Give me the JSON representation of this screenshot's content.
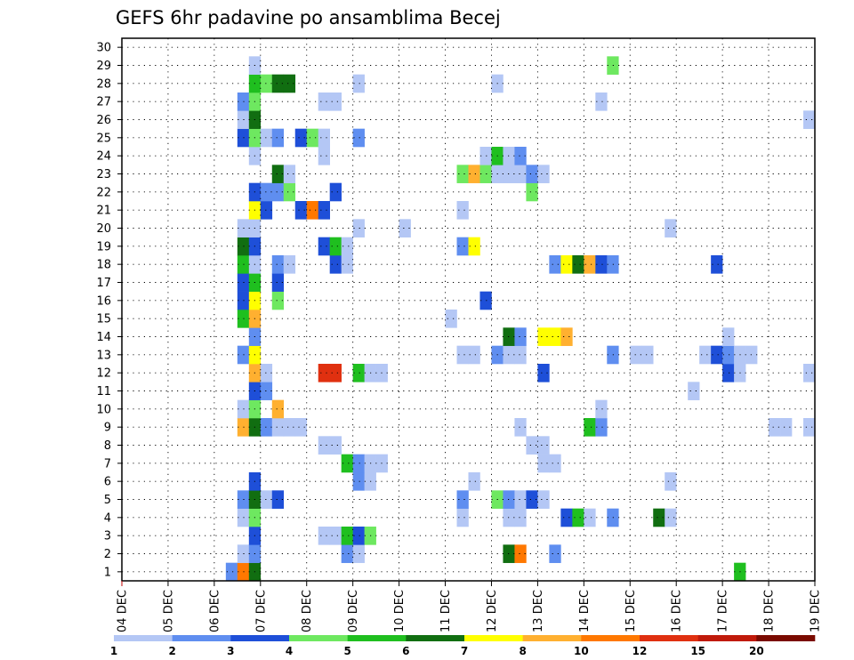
{
  "chart_data": {
    "type": "heatmap",
    "title": "GEFS 6hr padavine po ansamblima Becej",
    "xlabel": "",
    "ylabel": "",
    "x_tick_labels": [
      "04 DEC",
      "05 DEC",
      "06 DEC",
      "07 DEC",
      "08 DEC",
      "09 DEC",
      "10 DEC",
      "11 DEC",
      "12 DEC",
      "13 DEC",
      "14 DEC",
      "15 DEC",
      "16 DEC",
      "17 DEC",
      "18 DEC",
      "19 DEC"
    ],
    "y_tick_labels": [
      "1",
      "2",
      "3",
      "4",
      "5",
      "6",
      "7",
      "8",
      "9",
      "10",
      "11",
      "12",
      "13",
      "14",
      "15",
      "16",
      "17",
      "18",
      "19",
      "20",
      "21",
      "22",
      "23",
      "24",
      "25",
      "26",
      "27",
      "28",
      "29",
      "30"
    ],
    "xlim_steps": [
      0,
      60
    ],
    "ylim_members": [
      0.5,
      30.5
    ],
    "time_step_hours": 6,
    "grid": true,
    "colorbar": {
      "placement": "bottom",
      "levels": [
        "1",
        "2",
        "3",
        "4",
        "5",
        "6",
        "7",
        "8",
        "10",
        "12",
        "15",
        "20"
      ],
      "colors": [
        "#b4c7f5",
        "#5f8ef0",
        "#1e4fd8",
        "#6ee860",
        "#1fbf1f",
        "#116e11",
        "#ffff00",
        "#ffb030",
        "#ff7800",
        "#e03010",
        "#c01a0a",
        "#7a0a00"
      ]
    },
    "cells": [
      {
        "m": 1,
        "t": 9,
        "c": 1
      },
      {
        "m": 1,
        "t": 10,
        "c": 8
      },
      {
        "m": 1,
        "t": 11,
        "c": 5
      },
      {
        "m": 1,
        "t": 53,
        "c": 4
      },
      {
        "m": 2,
        "t": 10,
        "c": 0
      },
      {
        "m": 2,
        "t": 11,
        "c": 1
      },
      {
        "m": 2,
        "t": 19,
        "c": 1
      },
      {
        "m": 2,
        "t": 20,
        "c": 0
      },
      {
        "m": 2,
        "t": 33,
        "c": 5
      },
      {
        "m": 2,
        "t": 34,
        "c": 8
      },
      {
        "m": 2,
        "t": 37,
        "c": 1
      },
      {
        "m": 3,
        "t": 11,
        "c": 2
      },
      {
        "m": 3,
        "t": 17,
        "c": 0
      },
      {
        "m": 3,
        "t": 18,
        "c": 0
      },
      {
        "m": 3,
        "t": 19,
        "c": 4
      },
      {
        "m": 3,
        "t": 20,
        "c": 2
      },
      {
        "m": 3,
        "t": 21,
        "c": 3
      },
      {
        "m": 4,
        "t": 10,
        "c": 0
      },
      {
        "m": 4,
        "t": 11,
        "c": 3
      },
      {
        "m": 4,
        "t": 29,
        "c": 0
      },
      {
        "m": 4,
        "t": 33,
        "c": 0
      },
      {
        "m": 4,
        "t": 34,
        "c": 0
      },
      {
        "m": 4,
        "t": 38,
        "c": 2
      },
      {
        "m": 4,
        "t": 39,
        "c": 4
      },
      {
        "m": 4,
        "t": 40,
        "c": 0
      },
      {
        "m": 4,
        "t": 42,
        "c": 1
      },
      {
        "m": 4,
        "t": 46,
        "c": 5
      },
      {
        "m": 4,
        "t": 47,
        "c": 0
      },
      {
        "m": 5,
        "t": 10,
        "c": 1
      },
      {
        "m": 5,
        "t": 11,
        "c": 5
      },
      {
        "m": 5,
        "t": 12,
        "c": 0
      },
      {
        "m": 5,
        "t": 13,
        "c": 2
      },
      {
        "m": 5,
        "t": 29,
        "c": 1
      },
      {
        "m": 5,
        "t": 32,
        "c": 3
      },
      {
        "m": 5,
        "t": 33,
        "c": 1
      },
      {
        "m": 5,
        "t": 34,
        "c": 0
      },
      {
        "m": 5,
        "t": 35,
        "c": 2
      },
      {
        "m": 5,
        "t": 36,
        "c": 0
      },
      {
        "m": 6,
        "t": 11,
        "c": 2
      },
      {
        "m": 6,
        "t": 20,
        "c": 1
      },
      {
        "m": 6,
        "t": 21,
        "c": 0
      },
      {
        "m": 6,
        "t": 30,
        "c": 0
      },
      {
        "m": 6,
        "t": 47,
        "c": 0
      },
      {
        "m": 7,
        "t": 19,
        "c": 4
      },
      {
        "m": 7,
        "t": 20,
        "c": 1
      },
      {
        "m": 7,
        "t": 21,
        "c": 0
      },
      {
        "m": 7,
        "t": 22,
        "c": 0
      },
      {
        "m": 7,
        "t": 36,
        "c": 0
      },
      {
        "m": 7,
        "t": 37,
        "c": 0
      },
      {
        "m": 8,
        "t": 17,
        "c": 0
      },
      {
        "m": 8,
        "t": 18,
        "c": 0
      },
      {
        "m": 8,
        "t": 35,
        "c": 0
      },
      {
        "m": 8,
        "t": 36,
        "c": 0
      },
      {
        "m": 9,
        "t": 10,
        "c": 7
      },
      {
        "m": 9,
        "t": 11,
        "c": 5
      },
      {
        "m": 9,
        "t": 12,
        "c": 1
      },
      {
        "m": 9,
        "t": 13,
        "c": 0
      },
      {
        "m": 9,
        "t": 14,
        "c": 0
      },
      {
        "m": 9,
        "t": 15,
        "c": 0
      },
      {
        "m": 9,
        "t": 34,
        "c": 0
      },
      {
        "m": 9,
        "t": 40,
        "c": 4
      },
      {
        "m": 9,
        "t": 41,
        "c": 1
      },
      {
        "m": 9,
        "t": 56,
        "c": 0
      },
      {
        "m": 9,
        "t": 57,
        "c": 0
      },
      {
        "m": 9,
        "t": 59,
        "c": 0
      },
      {
        "m": 10,
        "t": 10,
        "c": 0
      },
      {
        "m": 10,
        "t": 11,
        "c": 3
      },
      {
        "m": 10,
        "t": 13,
        "c": 7
      },
      {
        "m": 10,
        "t": 41,
        "c": 0
      },
      {
        "m": 11,
        "t": 11,
        "c": 2
      },
      {
        "m": 11,
        "t": 12,
        "c": 1
      },
      {
        "m": 11,
        "t": 49,
        "c": 0
      },
      {
        "m": 12,
        "t": 11,
        "c": 7
      },
      {
        "m": 12,
        "t": 12,
        "c": 0
      },
      {
        "m": 12,
        "t": 17,
        "c": 9
      },
      {
        "m": 12,
        "t": 18,
        "c": 9
      },
      {
        "m": 12,
        "t": 20,
        "c": 4
      },
      {
        "m": 12,
        "t": 21,
        "c": 0
      },
      {
        "m": 12,
        "t": 22,
        "c": 0
      },
      {
        "m": 12,
        "t": 36,
        "c": 2
      },
      {
        "m": 12,
        "t": 52,
        "c": 2
      },
      {
        "m": 12,
        "t": 53,
        "c": 0
      },
      {
        "m": 12,
        "t": 59,
        "c": 0
      },
      {
        "m": 13,
        "t": 10,
        "c": 1
      },
      {
        "m": 13,
        "t": 11,
        "c": 6
      },
      {
        "m": 13,
        "t": 29,
        "c": 0
      },
      {
        "m": 13,
        "t": 30,
        "c": 0
      },
      {
        "m": 13,
        "t": 32,
        "c": 1
      },
      {
        "m": 13,
        "t": 33,
        "c": 0
      },
      {
        "m": 13,
        "t": 34,
        "c": 0
      },
      {
        "m": 13,
        "t": 42,
        "c": 1
      },
      {
        "m": 13,
        "t": 44,
        "c": 0
      },
      {
        "m": 13,
        "t": 45,
        "c": 0
      },
      {
        "m": 13,
        "t": 50,
        "c": 0
      },
      {
        "m": 13,
        "t": 51,
        "c": 2
      },
      {
        "m": 13,
        "t": 52,
        "c": 1
      },
      {
        "m": 13,
        "t": 53,
        "c": 0
      },
      {
        "m": 13,
        "t": 54,
        "c": 0
      },
      {
        "m": 14,
        "t": 11,
        "c": 1
      },
      {
        "m": 14,
        "t": 33,
        "c": 5
      },
      {
        "m": 14,
        "t": 34,
        "c": 1
      },
      {
        "m": 14,
        "t": 36,
        "c": 6
      },
      {
        "m": 14,
        "t": 37,
        "c": 6
      },
      {
        "m": 14,
        "t": 38,
        "c": 7
      },
      {
        "m": 14,
        "t": 52,
        "c": 0
      },
      {
        "m": 15,
        "t": 10,
        "c": 4
      },
      {
        "m": 15,
        "t": 11,
        "c": 7
      },
      {
        "m": 15,
        "t": 28,
        "c": 0
      },
      {
        "m": 16,
        "t": 10,
        "c": 2
      },
      {
        "m": 16,
        "t": 11,
        "c": 6
      },
      {
        "m": 16,
        "t": 13,
        "c": 3
      },
      {
        "m": 16,
        "t": 31,
        "c": 2
      },
      {
        "m": 17,
        "t": 10,
        "c": 2
      },
      {
        "m": 17,
        "t": 11,
        "c": 4
      },
      {
        "m": 17,
        "t": 13,
        "c": 2
      },
      {
        "m": 18,
        "t": 10,
        "c": 4
      },
      {
        "m": 18,
        "t": 11,
        "c": 0
      },
      {
        "m": 18,
        "t": 13,
        "c": 1
      },
      {
        "m": 18,
        "t": 14,
        "c": 0
      },
      {
        "m": 18,
        "t": 18,
        "c": 2
      },
      {
        "m": 18,
        "t": 19,
        "c": 0
      },
      {
        "m": 18,
        "t": 37,
        "c": 1
      },
      {
        "m": 18,
        "t": 38,
        "c": 6
      },
      {
        "m": 18,
        "t": 39,
        "c": 5
      },
      {
        "m": 18,
        "t": 40,
        "c": 7
      },
      {
        "m": 18,
        "t": 41,
        "c": 2
      },
      {
        "m": 18,
        "t": 42,
        "c": 1
      },
      {
        "m": 18,
        "t": 51,
        "c": 2
      },
      {
        "m": 19,
        "t": 10,
        "c": 5
      },
      {
        "m": 19,
        "t": 11,
        "c": 2
      },
      {
        "m": 19,
        "t": 17,
        "c": 2
      },
      {
        "m": 19,
        "t": 18,
        "c": 4
      },
      {
        "m": 19,
        "t": 19,
        "c": 0
      },
      {
        "m": 19,
        "t": 29,
        "c": 1
      },
      {
        "m": 19,
        "t": 30,
        "c": 6
      },
      {
        "m": 20,
        "t": 10,
        "c": 0
      },
      {
        "m": 20,
        "t": 11,
        "c": 0
      },
      {
        "m": 20,
        "t": 20,
        "c": 0
      },
      {
        "m": 20,
        "t": 24,
        "c": 0
      },
      {
        "m": 20,
        "t": 47,
        "c": 0
      },
      {
        "m": 21,
        "t": 11,
        "c": 6
      },
      {
        "m": 21,
        "t": 12,
        "c": 2
      },
      {
        "m": 21,
        "t": 15,
        "c": 2
      },
      {
        "m": 21,
        "t": 16,
        "c": 8
      },
      {
        "m": 21,
        "t": 17,
        "c": 2
      },
      {
        "m": 21,
        "t": 29,
        "c": 0
      },
      {
        "m": 22,
        "t": 11,
        "c": 2
      },
      {
        "m": 22,
        "t": 12,
        "c": 1
      },
      {
        "m": 22,
        "t": 13,
        "c": 1
      },
      {
        "m": 22,
        "t": 14,
        "c": 3
      },
      {
        "m": 22,
        "t": 18,
        "c": 2
      },
      {
        "m": 22,
        "t": 35,
        "c": 3
      },
      {
        "m": 23,
        "t": 13,
        "c": 5
      },
      {
        "m": 23,
        "t": 14,
        "c": 0
      },
      {
        "m": 23,
        "t": 29,
        "c": 3
      },
      {
        "m": 23,
        "t": 30,
        "c": 7
      },
      {
        "m": 23,
        "t": 31,
        "c": 3
      },
      {
        "m": 23,
        "t": 32,
        "c": 0
      },
      {
        "m": 23,
        "t": 33,
        "c": 0
      },
      {
        "m": 23,
        "t": 34,
        "c": 0
      },
      {
        "m": 23,
        "t": 35,
        "c": 1
      },
      {
        "m": 23,
        "t": 36,
        "c": 0
      },
      {
        "m": 24,
        "t": 11,
        "c": 0
      },
      {
        "m": 24,
        "t": 17,
        "c": 0
      },
      {
        "m": 24,
        "t": 31,
        "c": 0
      },
      {
        "m": 24,
        "t": 32,
        "c": 4
      },
      {
        "m": 24,
        "t": 33,
        "c": 0
      },
      {
        "m": 24,
        "t": 34,
        "c": 1
      },
      {
        "m": 25,
        "t": 10,
        "c": 2
      },
      {
        "m": 25,
        "t": 11,
        "c": 3
      },
      {
        "m": 25,
        "t": 12,
        "c": 0
      },
      {
        "m": 25,
        "t": 13,
        "c": 1
      },
      {
        "m": 25,
        "t": 15,
        "c": 2
      },
      {
        "m": 25,
        "t": 16,
        "c": 3
      },
      {
        "m": 25,
        "t": 17,
        "c": 0
      },
      {
        "m": 25,
        "t": 20,
        "c": 1
      },
      {
        "m": 26,
        "t": 10,
        "c": 0
      },
      {
        "m": 26,
        "t": 11,
        "c": 5
      },
      {
        "m": 26,
        "t": 59,
        "c": 0
      },
      {
        "m": 27,
        "t": 10,
        "c": 1
      },
      {
        "m": 27,
        "t": 11,
        "c": 3
      },
      {
        "m": 27,
        "t": 17,
        "c": 0
      },
      {
        "m": 27,
        "t": 18,
        "c": 0
      },
      {
        "m": 27,
        "t": 41,
        "c": 0
      },
      {
        "m": 28,
        "t": 11,
        "c": 4
      },
      {
        "m": 28,
        "t": 12,
        "c": 3
      },
      {
        "m": 28,
        "t": 13,
        "c": 5
      },
      {
        "m": 28,
        "t": 14,
        "c": 5
      },
      {
        "m": 28,
        "t": 20,
        "c": 0
      },
      {
        "m": 28,
        "t": 32,
        "c": 0
      },
      {
        "m": 29,
        "t": 11,
        "c": 0
      },
      {
        "m": 29,
        "t": 42,
        "c": 3
      }
    ]
  }
}
